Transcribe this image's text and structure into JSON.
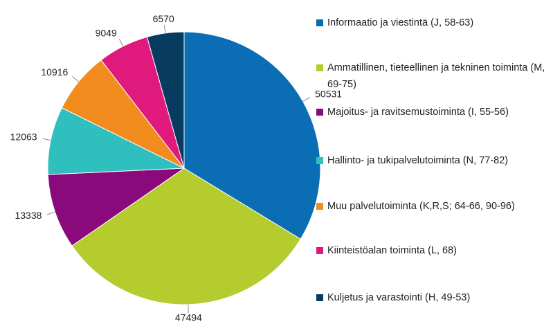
{
  "chart_data": {
    "type": "pie",
    "categories": [
      "Informaatio ja viestintä (J, 58-63)",
      "Ammatillinen, tieteellinen ja tekninen toiminta (M, 69-75)",
      "Majoitus- ja ravitsemustoiminta (I, 55-56)",
      "Hallinto- ja tukipalvelutoiminta (N, 77-82)",
      "Muu palvelutoiminta (K,R,S; 64-66, 90-96)",
      "Kiinteistöalan toiminta (L, 68)",
      "Kuljetus ja varastointi (H, 49-53)"
    ],
    "values": [
      50531,
      47494,
      13338,
      12063,
      10916,
      9049,
      6570
    ],
    "colors": [
      "#0b6db3",
      "#b5cc2f",
      "#8a0a7c",
      "#30bfbf",
      "#f28c1e",
      "#e01a7c",
      "#073b5f"
    ],
    "legend": "right"
  }
}
